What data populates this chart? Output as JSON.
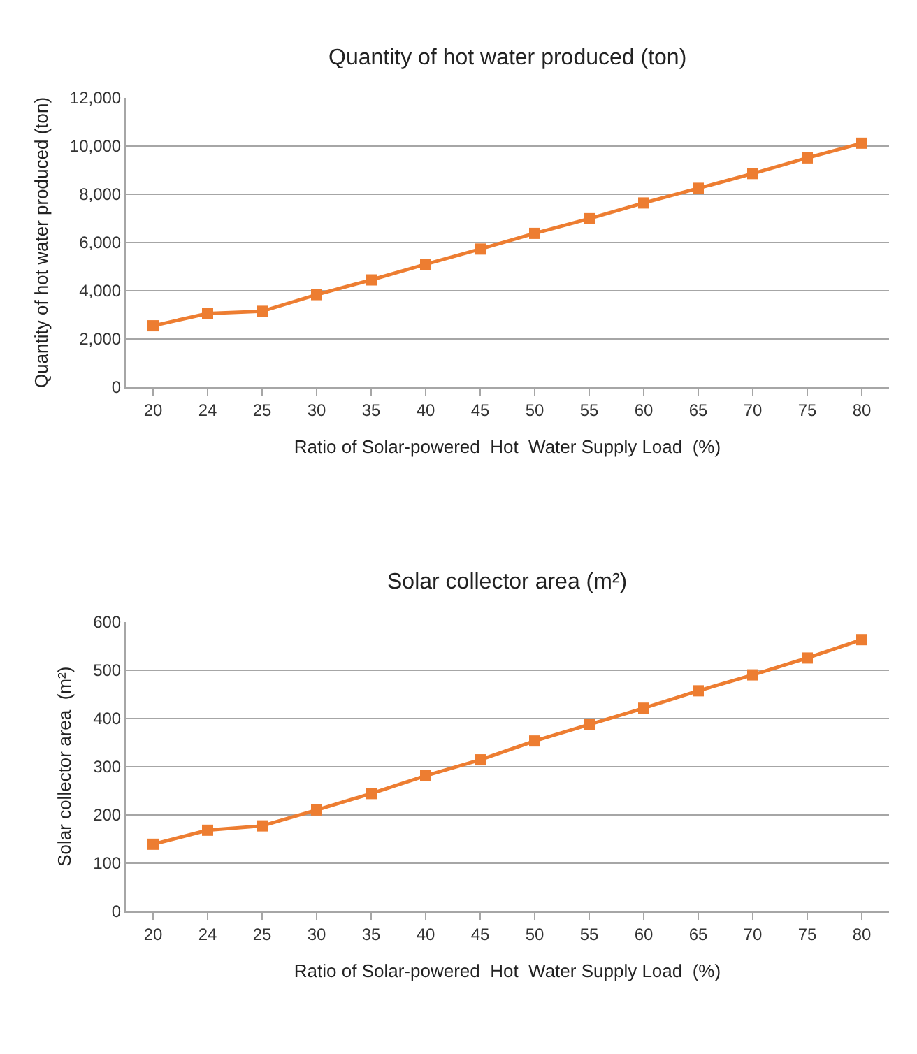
{
  "chart_data": [
    {
      "type": "line",
      "title": "Quantity of hot water produced (ton)",
      "xlabel": "Ratio of Solar-powered  Hot  Water Supply Load  (%)",
      "ylabel": "Quantity of hot water produced (ton)",
      "categories": [
        "20",
        "24",
        "25",
        "30",
        "35",
        "40",
        "45",
        "50",
        "55",
        "60",
        "65",
        "70",
        "75",
        "80"
      ],
      "series": [
        {
          "color": "#ed7d31",
          "values": [
            2550,
            3060,
            3150,
            3840,
            4450,
            5100,
            5730,
            6380,
            6990,
            7640,
            8250,
            8860,
            9510,
            10120
          ]
        }
      ],
      "ylim": [
        0,
        12000
      ],
      "yticks": [
        {
          "value": 0,
          "label": "0"
        },
        {
          "value": 2000,
          "label": "2,000"
        },
        {
          "value": 4000,
          "label": "4,000"
        },
        {
          "value": 6000,
          "label": "6,000"
        },
        {
          "value": 8000,
          "label": "8,000"
        },
        {
          "value": 10000,
          "label": "10,000"
        },
        {
          "value": 12000,
          "label": "12,000"
        }
      ],
      "grid": "y",
      "marker": "square",
      "line_style": "solid"
    },
    {
      "type": "line",
      "title": "Solar collector area (m²)",
      "xlabel": "Ratio of Solar-powered  Hot  Water Supply Load  (%)",
      "ylabel": "Solar collector area  (m²)",
      "categories": [
        "20",
        "24",
        "25",
        "30",
        "35",
        "40",
        "45",
        "50",
        "55",
        "60",
        "65",
        "70",
        "75",
        "80"
      ],
      "series": [
        {
          "color": "#ed7d31",
          "values": [
            139,
            168,
            177,
            210,
            244,
            281,
            314,
            353,
            387,
            421,
            457,
            490,
            525,
            563
          ]
        }
      ],
      "ylim": [
        0,
        600
      ],
      "yticks": [
        0,
        100,
        200,
        300,
        400,
        500,
        600
      ],
      "grid": "y",
      "marker": "square",
      "line_style": "solid"
    }
  ]
}
